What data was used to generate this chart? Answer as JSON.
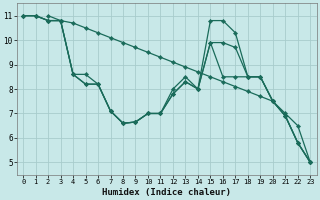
{
  "xlabel": "Humidex (Indice chaleur)",
  "bg_color": "#c8e8e8",
  "line_color": "#1a6b5a",
  "grid_color": "#a8cccc",
  "xlim": [
    -0.5,
    23.5
  ],
  "ylim": [
    4.5,
    11.5
  ],
  "xticks": [
    0,
    1,
    2,
    3,
    4,
    5,
    6,
    7,
    8,
    9,
    10,
    11,
    12,
    13,
    14,
    15,
    16,
    17,
    18,
    19,
    20,
    21,
    22,
    23
  ],
  "yticks": [
    5,
    6,
    7,
    8,
    9,
    10,
    11
  ],
  "lines": [
    {
      "x": [
        0,
        1,
        2,
        3,
        4,
        5,
        6,
        7,
        8,
        9,
        10,
        11,
        12,
        13,
        14,
        15,
        16,
        17,
        18,
        19,
        20,
        21,
        22,
        23
      ],
      "y": [
        11,
        11,
        10.8,
        10.8,
        10.7,
        10.5,
        10.3,
        10.1,
        9.9,
        9.7,
        9.5,
        9.3,
        9.1,
        8.9,
        8.7,
        8.5,
        8.3,
        8.1,
        7.9,
        7.7,
        7.5,
        7.0,
        6.5,
        5.0
      ]
    },
    {
      "x": [
        0,
        1,
        2,
        3,
        4,
        5,
        6,
        7,
        8,
        9,
        10,
        11,
        12,
        13,
        14,
        15,
        16,
        17,
        18,
        19,
        20,
        21,
        22,
        23
      ],
      "y": [
        11,
        11,
        10.8,
        10.8,
        8.6,
        8.2,
        8.2,
        7.1,
        6.6,
        6.65,
        7.0,
        7.0,
        7.8,
        8.3,
        8.0,
        10.8,
        10.8,
        10.3,
        8.5,
        8.5,
        7.5,
        6.9,
        5.8,
        5.0
      ]
    },
    {
      "x": [
        0,
        1,
        2,
        3,
        4,
        5,
        6,
        7,
        8,
        9,
        10,
        11,
        12,
        13,
        14,
        15,
        16,
        17,
        18,
        19,
        20,
        21,
        22,
        23
      ],
      "y": [
        11,
        11,
        10.8,
        10.8,
        8.6,
        8.2,
        8.2,
        7.1,
        6.6,
        6.65,
        7.0,
        7.0,
        8.0,
        8.5,
        8.0,
        9.9,
        9.9,
        9.7,
        8.5,
        8.5,
        7.5,
        6.9,
        5.8,
        5.0
      ]
    },
    {
      "x": [
        2,
        3,
        4,
        5,
        6,
        7,
        8,
        9,
        10,
        11,
        12,
        13,
        14,
        15,
        16,
        17,
        18,
        19,
        20,
        21,
        22,
        23
      ],
      "y": [
        11,
        10.8,
        8.6,
        8.6,
        8.2,
        7.1,
        6.6,
        6.65,
        7.0,
        7.0,
        7.8,
        8.3,
        8.0,
        9.9,
        8.5,
        8.5,
        8.5,
        8.5,
        7.5,
        6.9,
        5.8,
        5.0
      ]
    }
  ]
}
